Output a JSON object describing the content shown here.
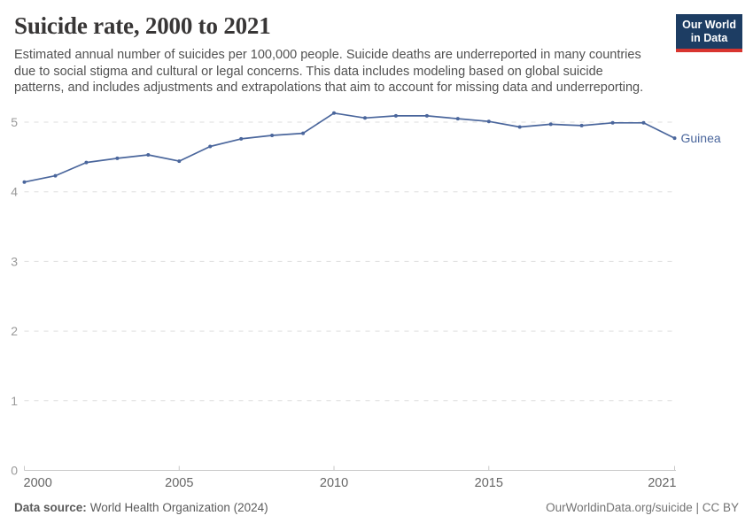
{
  "header": {
    "title": "Suicide rate, 2000 to 2021",
    "subtitle_lines": [
      "Estimated annual number of suicides per 100,000 people. Suicide deaths are underreported in many countries",
      "due to social stigma and cultural or legal concerns. This data includes modeling based on global suicide",
      "patterns, and includes adjustments and extrapolations that aim to account for missing data and underreporting."
    ],
    "logo": {
      "line1": "Our World",
      "line2": "in Data",
      "bg_color": "#1d3d63",
      "accent_color": "#d8352f"
    }
  },
  "chart_data": {
    "type": "line",
    "title": "Suicide rate, 2000 to 2021",
    "xlabel": "",
    "ylabel": "",
    "x": [
      2000,
      2001,
      2002,
      2003,
      2004,
      2005,
      2006,
      2007,
      2008,
      2009,
      2010,
      2011,
      2012,
      2013,
      2014,
      2015,
      2016,
      2017,
      2018,
      2019,
      2020,
      2021
    ],
    "series": [
      {
        "name": "Guinea",
        "color": "#4a669c",
        "values": [
          4.14,
          4.23,
          4.42,
          4.48,
          4.53,
          4.44,
          4.65,
          4.76,
          4.81,
          4.84,
          5.13,
          5.06,
          5.09,
          5.09,
          5.05,
          5.01,
          4.93,
          4.97,
          4.95,
          4.99,
          4.99,
          4.77
        ]
      }
    ],
    "x_ticks": [
      2000,
      2005,
      2010,
      2015,
      2021
    ],
    "y_ticks": [
      0,
      1,
      2,
      3,
      4,
      5
    ],
    "xlim": [
      2000,
      2021
    ],
    "ylim": [
      0,
      5.35
    ],
    "grid": "horizontal-dashed",
    "legend_position": "end-of-line-label",
    "end_label": "Guinea",
    "colors": {
      "line": "#4a669c",
      "gridline": "#dddddd",
      "axis_line": "#c8c8c8",
      "y_tick_label": "#9a9a9a",
      "x_tick_label": "#666666"
    }
  },
  "footer": {
    "source_label": "Data source:",
    "source_value": "World Health Organization (2024)",
    "rights": "OurWorldinData.org/suicide | CC BY"
  }
}
